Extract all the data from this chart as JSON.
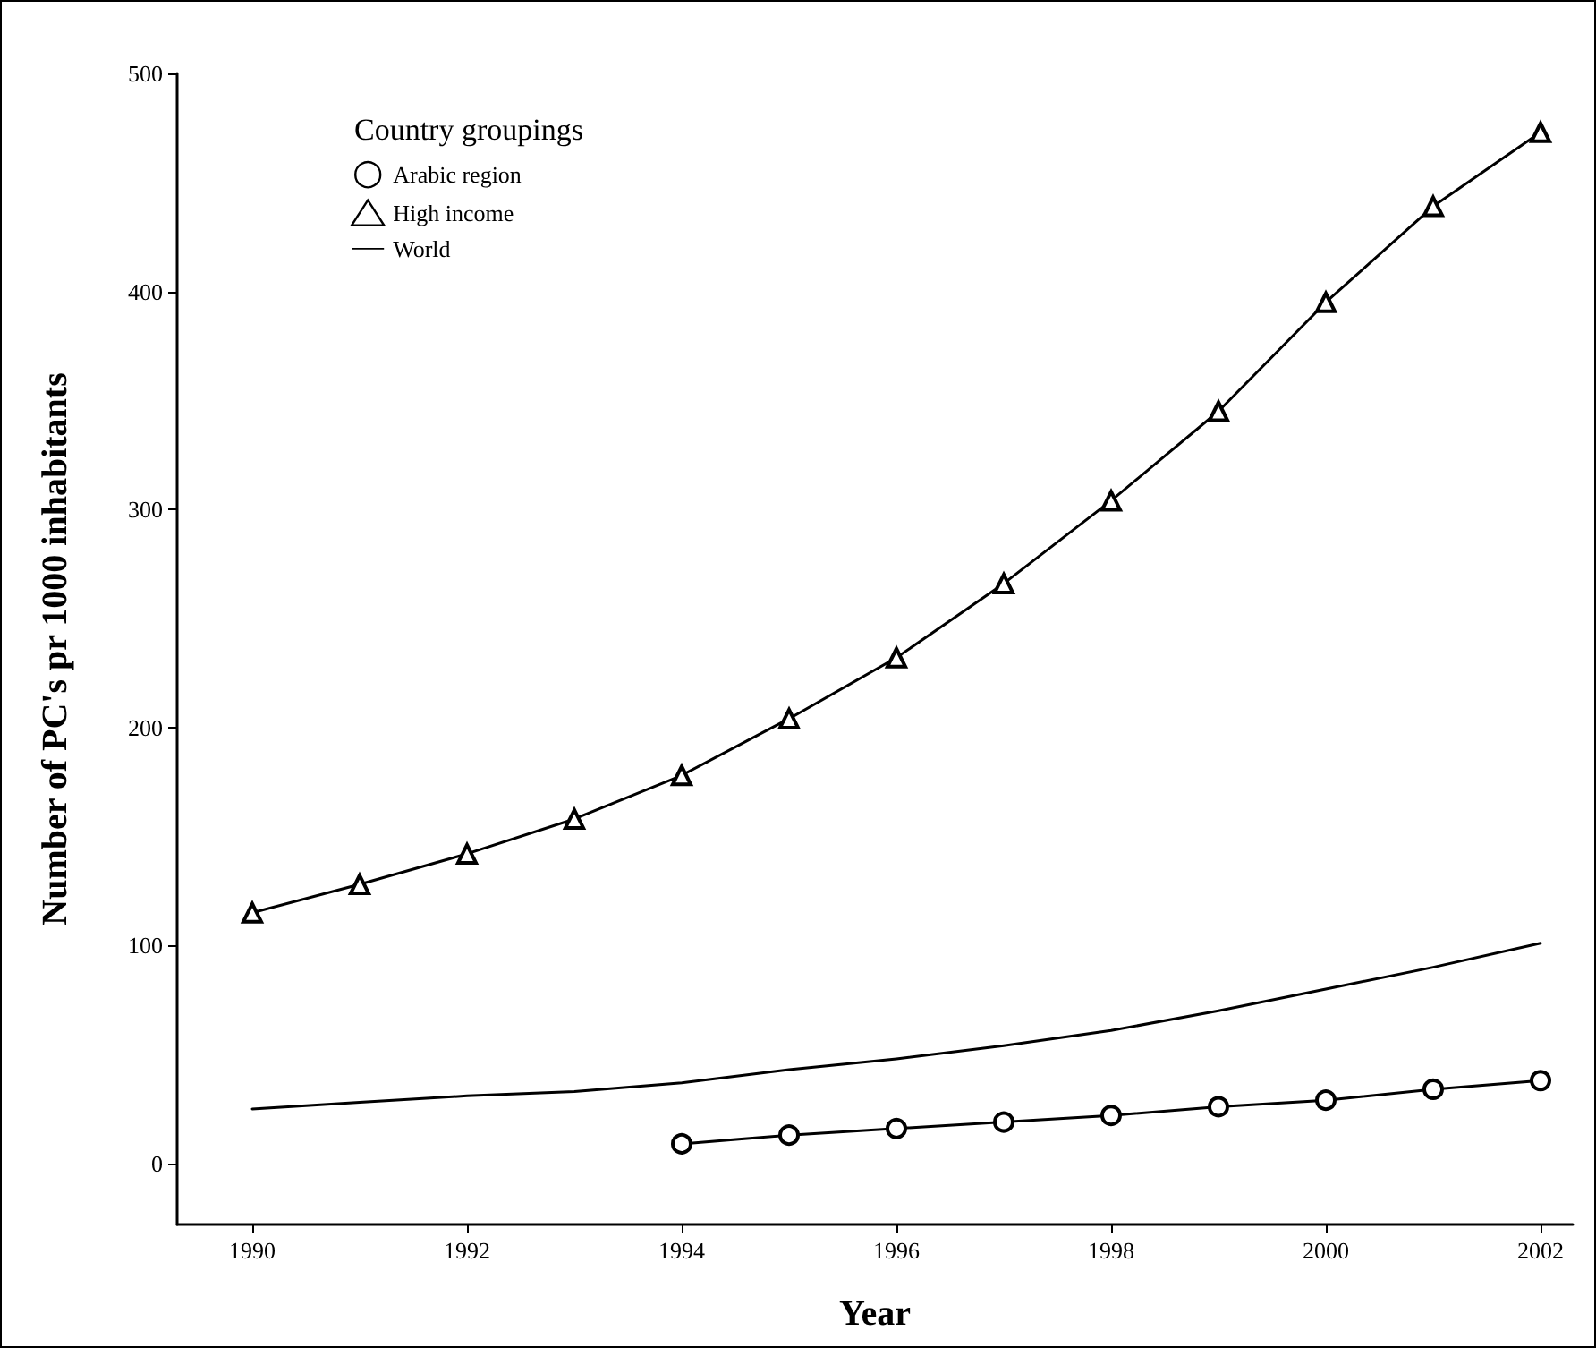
{
  "chart_data": {
    "type": "line",
    "xlabel": "Year",
    "ylabel": "Number of PC's pr 1000 inhabitants",
    "legend_title": "Country groupings",
    "legend": "top left",
    "grid": false,
    "x": [
      1990,
      1991,
      1992,
      1993,
      1994,
      1995,
      1996,
      1997,
      1998,
      1999,
      2000,
      2001,
      2002
    ],
    "xlim": [
      1989.3,
      2002.3
    ],
    "xticks": [
      1990,
      1992,
      1994,
      1996,
      1998,
      2000,
      2002
    ],
    "ylim": [
      -28,
      500
    ],
    "yticks": [
      0,
      100,
      200,
      300,
      400,
      500
    ],
    "series": [
      {
        "name": "Arabic region",
        "color": "#000000",
        "marker": "circle",
        "values": [
          null,
          null,
          null,
          null,
          9,
          13,
          16,
          19,
          22,
          26,
          29,
          34,
          38
        ]
      },
      {
        "name": "High income",
        "color": "#000000",
        "marker": "triangle",
        "values": [
          115,
          128,
          142,
          158,
          178,
          204,
          232,
          266,
          304,
          345,
          395,
          439,
          473
        ]
      },
      {
        "name": "World",
        "color": "#000000",
        "marker": "none",
        "values": [
          25,
          28,
          31,
          33,
          37,
          43,
          48,
          54,
          61,
          70,
          80,
          90,
          101
        ]
      }
    ]
  }
}
